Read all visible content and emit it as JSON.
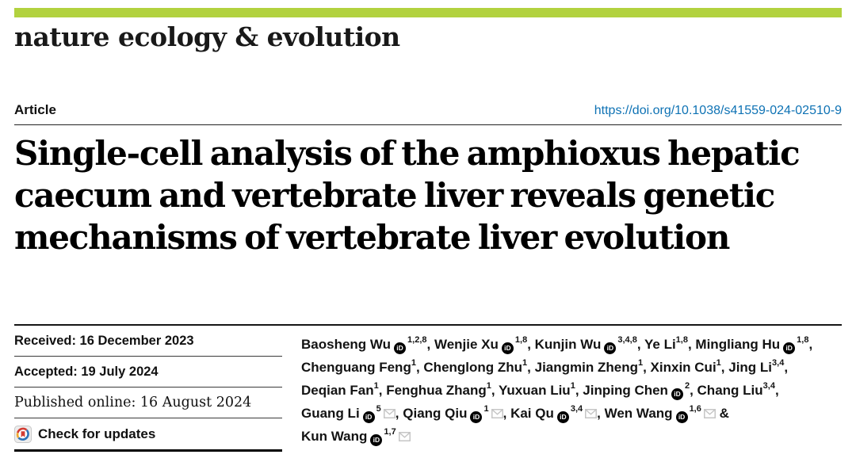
{
  "masthead": {
    "journal": "nature ecology & evolution"
  },
  "article": {
    "kicker": "Article",
    "doi": "https://doi.org/10.1038/s41559-024-02510-9"
  },
  "title": {
    "lines": [
      "Single-cell analysis of the amphioxus hepatic",
      "caecum and vertebrate liver reveals genetic",
      "mechanisms of vertebrate liver evolution"
    ]
  },
  "dates": {
    "rows": [
      {
        "text": "Received: 16 December 2023",
        "serif": false
      },
      {
        "text": "Accepted: 19 July 2024",
        "serif": false
      },
      {
        "text": "Published online: 16 August 2024",
        "serif": true
      }
    ],
    "check_updates_label": "Check for updates"
  },
  "authors": {
    "separator": ", ",
    "ampersand": "&",
    "orcid_glyph": "iD",
    "list": [
      {
        "name": "Baosheng Wu",
        "orcid": true,
        "sup": "1,2,8",
        "email": false,
        "break_after": false
      },
      {
        "name": "Wenjie Xu",
        "orcid": true,
        "sup": "1,8",
        "email": false,
        "break_after": false
      },
      {
        "name": "Kunjin Wu",
        "orcid": true,
        "sup": "3,4,8",
        "email": false,
        "break_after": false
      },
      {
        "name": "Ye Li",
        "orcid": false,
        "sup": "1,8",
        "email": false,
        "break_after": false
      },
      {
        "name": "Mingliang Hu",
        "orcid": true,
        "sup": "1,8",
        "email": false,
        "break_after": true
      },
      {
        "name": "Chenguang Feng",
        "orcid": false,
        "sup": "1",
        "email": false,
        "break_after": false
      },
      {
        "name": "Chenglong Zhu",
        "orcid": false,
        "sup": "1",
        "email": false,
        "break_after": false
      },
      {
        "name": "Jiangmin Zheng",
        "orcid": false,
        "sup": "1",
        "email": false,
        "break_after": false
      },
      {
        "name": "Xinxin Cui",
        "orcid": false,
        "sup": "1",
        "email": false,
        "break_after": false
      },
      {
        "name": "Jing Li",
        "orcid": false,
        "sup": "3,4",
        "email": false,
        "break_after": true
      },
      {
        "name": "Deqian Fan",
        "orcid": false,
        "sup": "1",
        "email": false,
        "break_after": false
      },
      {
        "name": "Fenghua Zhang",
        "orcid": false,
        "sup": "1",
        "email": false,
        "break_after": false
      },
      {
        "name": "Yuxuan Liu",
        "orcid": false,
        "sup": "1",
        "email": false,
        "break_after": false
      },
      {
        "name": "Jinping Chen",
        "orcid": true,
        "sup": "2",
        "email": false,
        "break_after": false
      },
      {
        "name": "Chang Liu",
        "orcid": false,
        "sup": "3,4",
        "email": false,
        "break_after": true
      },
      {
        "name": "Guang Li",
        "orcid": true,
        "sup": "5",
        "email": true,
        "break_after": false
      },
      {
        "name": "Qiang Qiu",
        "orcid": true,
        "sup": "1",
        "email": true,
        "break_after": false
      },
      {
        "name": "Kai Qu",
        "orcid": true,
        "sup": "3,4",
        "email": true,
        "break_after": false
      },
      {
        "name": "Wen Wang",
        "orcid": true,
        "sup": "1,6",
        "email": true,
        "break_after": true
      },
      {
        "name": "Kun Wang",
        "orcid": true,
        "sup": "1,7",
        "email": true,
        "break_after": false
      }
    ]
  },
  "colors": {
    "green_bar": "#b2d23f",
    "doi_blue": "#0e72b4",
    "orcid_black": "#000000",
    "envelope_gray": "#c6c6c6",
    "crossmark_red": "#d23c32",
    "crossmark_yellow": "#f0a92e",
    "crossmark_blue": "#2d72b8"
  }
}
